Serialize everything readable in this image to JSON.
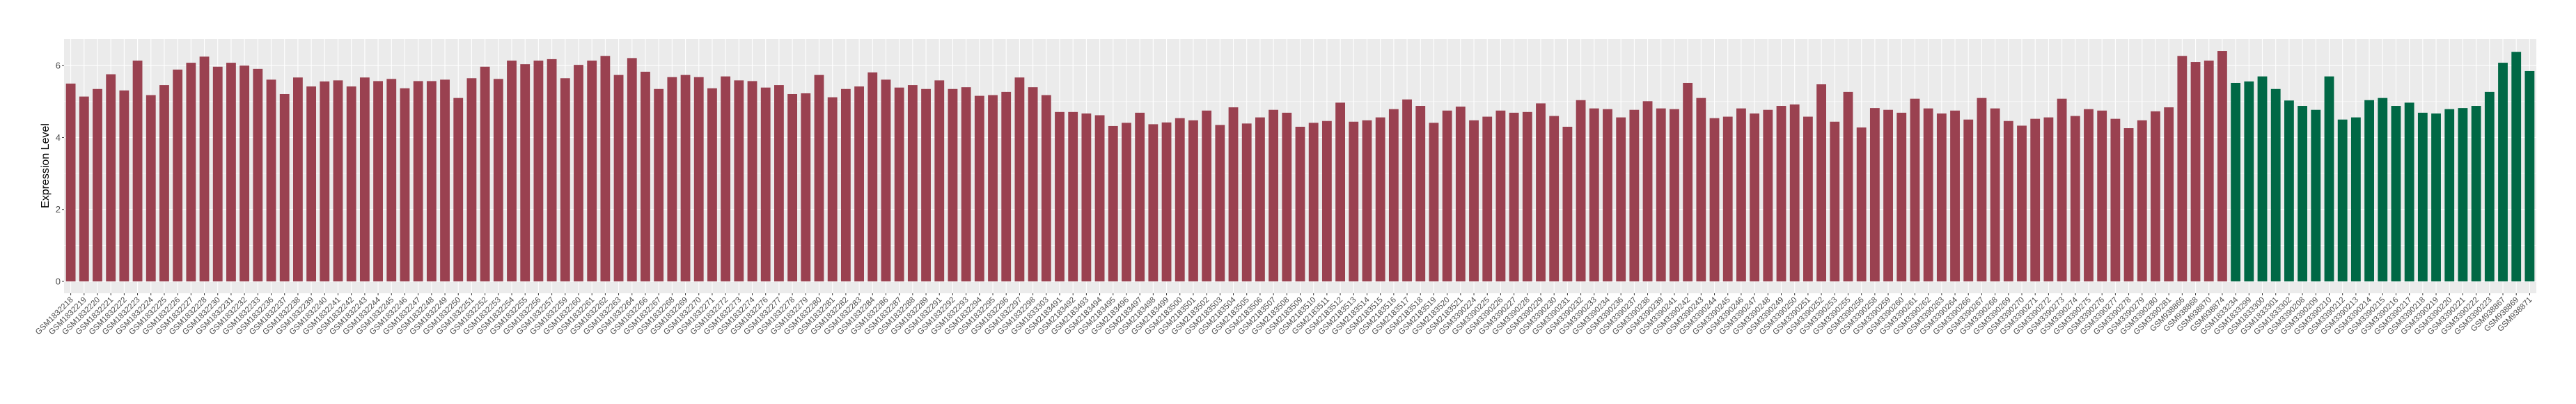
{
  "chart_data": {
    "type": "bar",
    "title": "",
    "xlabel": "",
    "ylabel": "Expression Level",
    "ylim": [
      -0.33,
      6.74
    ],
    "yticks": [
      0,
      2,
      4,
      6
    ],
    "grid": true,
    "panel_background": "#EBEBEB",
    "series": [
      {
        "color": "#9A4150",
        "categories": [
          "GSM1832218",
          "GSM1832219",
          "GSM1832220",
          "GSM1832221",
          "GSM1832222",
          "GSM1832223",
          "GSM1832224",
          "GSM1832225",
          "GSM1832226",
          "GSM1832227",
          "GSM1832228",
          "GSM1832230",
          "GSM1832231",
          "GSM1832232",
          "GSM1832233",
          "GSM1832236",
          "GSM1832237",
          "GSM1832238",
          "GSM1832239",
          "GSM1832240",
          "GSM1832241",
          "GSM1832242",
          "GSM1832243",
          "GSM1832244",
          "GSM1832245",
          "GSM1832246",
          "GSM1832247",
          "GSM1832248",
          "GSM1832249",
          "GSM1832250",
          "GSM1832251",
          "GSM1832252",
          "GSM1832253",
          "GSM1832254",
          "GSM1832255",
          "GSM1832256",
          "GSM1832257",
          "GSM1832259",
          "GSM1832260",
          "GSM1832261",
          "GSM1832262",
          "GSM1832263",
          "GSM1832264",
          "GSM1832266",
          "GSM1832267",
          "GSM1832268",
          "GSM1832269",
          "GSM1832270",
          "GSM1832271",
          "GSM1832272",
          "GSM1832273",
          "GSM1832274",
          "GSM1832276",
          "GSM1832277",
          "GSM1832278",
          "GSM1832279",
          "GSM1832280",
          "GSM1832281",
          "GSM1832282",
          "GSM1832283",
          "GSM1832284",
          "GSM1832286",
          "GSM1832287",
          "GSM1832288",
          "GSM1832289",
          "GSM1832291",
          "GSM1832292",
          "GSM1832293",
          "GSM1832294",
          "GSM1832295",
          "GSM1832296",
          "GSM1832297",
          "GSM1832298",
          "GSM1833303",
          "GSM2183491",
          "GSM2183492",
          "GSM2183493",
          "GSM2183494",
          "GSM2183495",
          "GSM2183496",
          "GSM2183497",
          "GSM2183498",
          "GSM2183499",
          "GSM2183500",
          "GSM2183501",
          "GSM2183502",
          "GSM2183503",
          "GSM2183504",
          "GSM2183505",
          "GSM2183506",
          "GSM2183507",
          "GSM2183508",
          "GSM2183509",
          "GSM2183510",
          "GSM2183511",
          "GSM2183512",
          "GSM2183513",
          "GSM2183514",
          "GSM2183515",
          "GSM2183516",
          "GSM2183517",
          "GSM2183518",
          "GSM2183519",
          "GSM2183520",
          "GSM2183521",
          "GSM3390224",
          "GSM3390225",
          "GSM3390226",
          "GSM3390227",
          "GSM3390228",
          "GSM3390229",
          "GSM3390230",
          "GSM3390231",
          "GSM3390232",
          "GSM3390233",
          "GSM3390234",
          "GSM3390236",
          "GSM3390237",
          "GSM3390238",
          "GSM3390239",
          "GSM3390241",
          "GSM3390242",
          "GSM3390243",
          "GSM3390244",
          "GSM3390245",
          "GSM3390246",
          "GSM3390247",
          "GSM3390248",
          "GSM3390249",
          "GSM3390250",
          "GSM3390251",
          "GSM3390252",
          "GSM3390253",
          "GSM3390255",
          "GSM3390256",
          "GSM3390258",
          "GSM3390259",
          "GSM3390260",
          "GSM3390261",
          "GSM3390262",
          "GSM3390263",
          "GSM3390264",
          "GSM3390266",
          "GSM3390267",
          "GSM3390268",
          "GSM3390269",
          "GSM3390270",
          "GSM3390271",
          "GSM3390272",
          "GSM3390273",
          "GSM3390274",
          "GSM3390275",
          "GSM3390276",
          "GSM3390277",
          "GSM3390278",
          "GSM3390279",
          "GSM3390280",
          "GSM3390281",
          "GSM938866",
          "GSM938868",
          "GSM938870",
          "GSM938874"
        ],
        "values": [
          5.5,
          5.14,
          5.35,
          5.76,
          5.31,
          6.14,
          5.18,
          5.46,
          5.89,
          6.08,
          6.25,
          5.97,
          6.08,
          6.0,
          5.91,
          5.61,
          5.21,
          5.67,
          5.42,
          5.56,
          5.59,
          5.42,
          5.67,
          5.57,
          5.63,
          5.37,
          5.57,
          5.57,
          5.61,
          5.1,
          5.65,
          5.97,
          5.63,
          6.14,
          6.04,
          6.14,
          6.18,
          5.65,
          6.02,
          6.14,
          6.27,
          5.74,
          6.21,
          5.83,
          5.35,
          5.68,
          5.74,
          5.68,
          5.37,
          5.7,
          5.59,
          5.57,
          5.39,
          5.46,
          5.21,
          5.23,
          5.74,
          5.12,
          5.35,
          5.42,
          5.81,
          5.61,
          5.39,
          5.46,
          5.35,
          5.59,
          5.35,
          5.4,
          5.16,
          5.18,
          5.27,
          5.67,
          5.4,
          5.18,
          4.71,
          4.71,
          4.67,
          4.62,
          4.32,
          4.41,
          4.69,
          4.37,
          4.42,
          4.54,
          4.48,
          4.75,
          4.35,
          4.84,
          4.39,
          4.56,
          4.77,
          4.69,
          4.3,
          4.41,
          4.46,
          4.97,
          4.44,
          4.48,
          4.56,
          4.79,
          5.06,
          4.88,
          4.41,
          4.75,
          4.86,
          4.48,
          4.58,
          4.75,
          4.69,
          4.71,
          4.95,
          4.6,
          4.3,
          5.04,
          4.81,
          4.79,
          4.56,
          4.77,
          5.01,
          4.81,
          4.79,
          5.52,
          5.1,
          4.54,
          4.58,
          4.81,
          4.67,
          4.77,
          4.88,
          4.92,
          4.58,
          5.48,
          4.44,
          5.27,
          4.28,
          4.82,
          4.77,
          4.69,
          5.08,
          4.81,
          4.67,
          4.75,
          4.5,
          5.1,
          4.81,
          4.46,
          4.33,
          4.52,
          4.56,
          5.08,
          4.6,
          4.79,
          4.75,
          4.52,
          4.26,
          4.48,
          4.73,
          4.84,
          6.27,
          6.1,
          6.14,
          6.41
        ]
      },
      {
        "color": "#006845",
        "categories": [
          "GSM1833234",
          "GSM1833299",
          "GSM1833300",
          "GSM1833301",
          "GSM1833302",
          "GSM3390208",
          "GSM3390209",
          "GSM3390210",
          "GSM3390212",
          "GSM3390213",
          "GSM3390214",
          "GSM3390215",
          "GSM3390216",
          "GSM3390217",
          "GSM3390218",
          "GSM3390219",
          "GSM3390220",
          "GSM3390221",
          "GSM3390222",
          "GSM3390223",
          "GSM938867",
          "GSM938869",
          "GSM938871"
        ],
        "values": [
          5.52,
          5.56,
          5.7,
          5.35,
          5.03,
          4.88,
          4.77,
          5.7,
          4.5,
          4.56,
          5.04,
          5.1,
          4.88,
          4.97,
          4.69,
          4.67,
          4.79,
          4.82,
          4.88,
          5.27,
          6.08,
          6.38,
          5.85
        ]
      }
    ]
  }
}
